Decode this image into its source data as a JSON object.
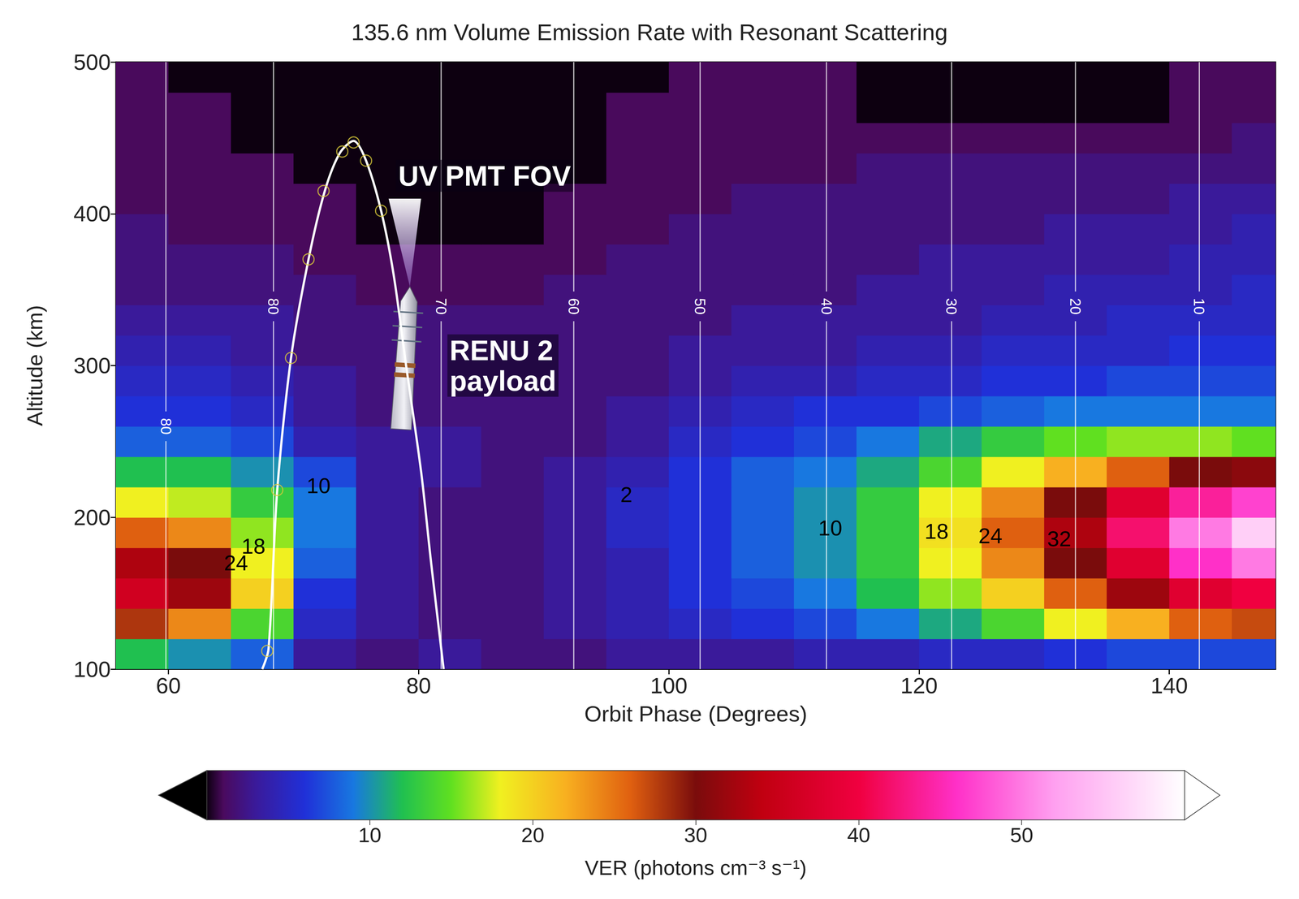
{
  "chart_data": {
    "type": "heatmap",
    "title": "135.6 nm Volume Emission Rate with Resonant Scattering",
    "x_label": "Orbit Phase (Degrees)",
    "y_label": "Altitude (km)",
    "xlim": [
      55.8,
      148.5
    ],
    "xticks": [
      60,
      80,
      100,
      120,
      140
    ],
    "ylim": [
      100,
      500
    ],
    "yticks": [
      100,
      200,
      300,
      400,
      500
    ],
    "heatmap": {
      "x": [
        57.5,
        62.5,
        67.5,
        72.5,
        77.5,
        82.5,
        87.5,
        92.5,
        97.5,
        102.5,
        107.5,
        112.5,
        117.5,
        122.5,
        127.5,
        132.5,
        137.5,
        142.5,
        147.5
      ],
      "y": [
        110,
        130,
        150,
        170,
        190,
        210,
        230,
        250,
        270,
        290,
        310,
        330,
        350,
        370,
        390,
        410,
        430,
        450,
        470,
        490
      ],
      "values": [
        [
          12,
          10,
          8,
          3,
          2,
          3,
          2,
          2,
          3,
          3,
          3,
          4,
          4,
          5,
          5,
          6,
          7,
          7,
          7
        ],
        [
          28,
          24,
          14,
          5,
          3,
          2,
          2,
          3,
          4,
          5,
          6,
          7,
          9,
          11,
          14,
          18,
          22,
          26,
          27
        ],
        [
          36,
          32,
          20,
          6,
          3,
          2,
          2,
          3,
          4,
          6,
          7,
          9,
          12,
          16,
          20,
          26,
          32,
          38,
          40
        ],
        [
          33,
          30,
          18,
          8,
          3,
          2,
          2,
          3,
          4,
          6,
          8,
          10,
          13,
          18,
          24,
          30,
          38,
          46,
          50
        ],
        [
          26,
          24,
          16,
          9,
          3,
          2,
          2,
          3,
          5,
          6,
          8,
          10,
          13,
          19,
          26,
          33,
          42,
          50,
          56
        ],
        [
          18,
          17,
          13,
          9,
          3,
          2,
          2,
          3,
          5,
          6,
          8,
          10,
          13,
          18,
          24,
          30,
          38,
          44,
          47
        ],
        [
          12,
          12,
          10,
          7,
          3,
          3,
          2,
          3,
          4,
          6,
          8,
          9,
          11,
          14,
          18,
          22,
          26,
          30,
          31
        ],
        [
          8,
          8,
          7,
          4,
          3,
          3,
          2,
          2,
          3,
          5,
          6,
          7,
          9,
          11,
          13,
          15,
          16,
          16,
          15
        ],
        [
          6,
          6,
          5,
          3,
          2,
          2,
          2,
          2,
          3,
          4,
          5,
          6,
          6,
          7,
          8,
          9,
          9,
          9,
          9
        ],
        [
          5,
          5,
          4,
          3,
          2,
          2,
          2,
          2,
          2,
          3,
          4,
          4,
          5,
          5,
          6,
          6,
          7,
          7,
          7
        ],
        [
          4,
          4,
          3,
          2,
          2,
          2,
          2,
          2,
          2,
          3,
          3,
          3,
          4,
          4,
          5,
          5,
          5,
          6,
          6
        ],
        [
          3,
          3,
          3,
          2,
          2,
          2,
          2,
          2,
          2,
          2,
          3,
          3,
          3,
          3,
          4,
          4,
          5,
          5,
          5
        ],
        [
          2,
          2,
          2,
          2,
          1,
          1,
          1,
          2,
          2,
          2,
          2,
          2,
          3,
          3,
          3,
          4,
          4,
          4,
          5
        ],
        [
          2,
          2,
          2,
          1,
          1,
          1,
          1,
          1,
          2,
          2,
          2,
          2,
          2,
          3,
          3,
          3,
          3,
          4,
          4
        ],
        [
          2,
          1,
          1,
          1,
          0,
          0,
          0,
          1,
          1,
          2,
          2,
          2,
          2,
          2,
          2,
          3,
          3,
          3,
          4
        ],
        [
          1,
          1,
          1,
          1,
          0,
          0,
          0,
          1,
          1,
          1,
          2,
          2,
          2,
          2,
          2,
          2,
          2,
          3,
          3
        ],
        [
          1,
          1,
          1,
          0,
          0,
          0,
          0,
          0,
          1,
          1,
          1,
          1,
          2,
          2,
          2,
          2,
          2,
          2,
          2
        ],
        [
          1,
          1,
          0,
          0,
          0,
          0,
          0,
          0,
          1,
          1,
          1,
          1,
          1,
          1,
          1,
          1,
          1,
          1,
          2
        ],
        [
          1,
          1,
          0,
          0,
          0,
          0,
          0,
          0,
          1,
          1,
          1,
          1,
          0,
          0,
          0,
          0,
          0,
          1,
          1
        ],
        [
          1,
          0,
          0,
          0,
          0,
          0,
          0,
          0,
          0,
          1,
          1,
          1,
          0,
          0,
          0,
          0,
          0,
          1,
          1
        ]
      ]
    },
    "color_range": [
      0,
      60
    ],
    "color_ticks": [
      10,
      20,
      30,
      40,
      50
    ],
    "colorbar_label": "VER (photons cm⁻³ s⁻¹)",
    "contour_labels": [
      {
        "x": 72.0,
        "y": 221,
        "value": 10
      },
      {
        "x": 66.8,
        "y": 181,
        "value": 18
      },
      {
        "x": 65.4,
        "y": 170,
        "value": 24
      },
      {
        "x": 96.6,
        "y": 215,
        "value": 2
      },
      {
        "x": 112.9,
        "y": 193,
        "value": 10
      },
      {
        "x": 121.4,
        "y": 191,
        "value": 18
      },
      {
        "x": 125.7,
        "y": 188,
        "value": 24
      },
      {
        "x": 131.2,
        "y": 186,
        "value": 32
      }
    ],
    "meridians": [
      {
        "x": 59.8,
        "label_y": 260,
        "label": "80"
      },
      {
        "x": 68.4,
        "label_y": 339,
        "label": "80"
      },
      {
        "x": 81.8,
        "label_y": 339,
        "label": "70"
      },
      {
        "x": 92.4,
        "label_y": 339,
        "label": "60"
      },
      {
        "x": 102.5,
        "label_y": 339,
        "label": "50"
      },
      {
        "x": 112.6,
        "label_y": 339,
        "label": "40"
      },
      {
        "x": 122.6,
        "label_y": 339,
        "label": "30"
      },
      {
        "x": 132.5,
        "label_y": 339,
        "label": "20"
      },
      {
        "x": 142.4,
        "label_y": 339,
        "label": "10"
      }
    ],
    "trajectory": {
      "type": "line",
      "color": "#ffffff",
      "x": [
        67.5,
        68.0,
        68.7,
        69.8,
        71.2,
        72.5,
        73.7,
        74.8,
        75.8,
        77.0,
        78.0,
        79.0,
        80.2,
        81.0,
        82.0
      ],
      "y": [
        100,
        113,
        218,
        305,
        370,
        415,
        440,
        448,
        435,
        402,
        360,
        300,
        230,
        170,
        100
      ]
    },
    "markers": {
      "type": "scatter",
      "color": "#d8c838",
      "marker": "circle",
      "x": [
        67.9,
        68.7,
        69.8,
        71.2,
        72.4,
        73.9,
        74.8,
        75.8,
        77.0
      ],
      "y": [
        112,
        218,
        305,
        370,
        415,
        441,
        447,
        435,
        402
      ]
    },
    "annotations": [
      {
        "text": "UV PMT FOV",
        "x": 78.2,
        "y": 425
      },
      {
        "text": "RENU 2\npayload",
        "x": 82.3,
        "y": 300
      }
    ]
  }
}
